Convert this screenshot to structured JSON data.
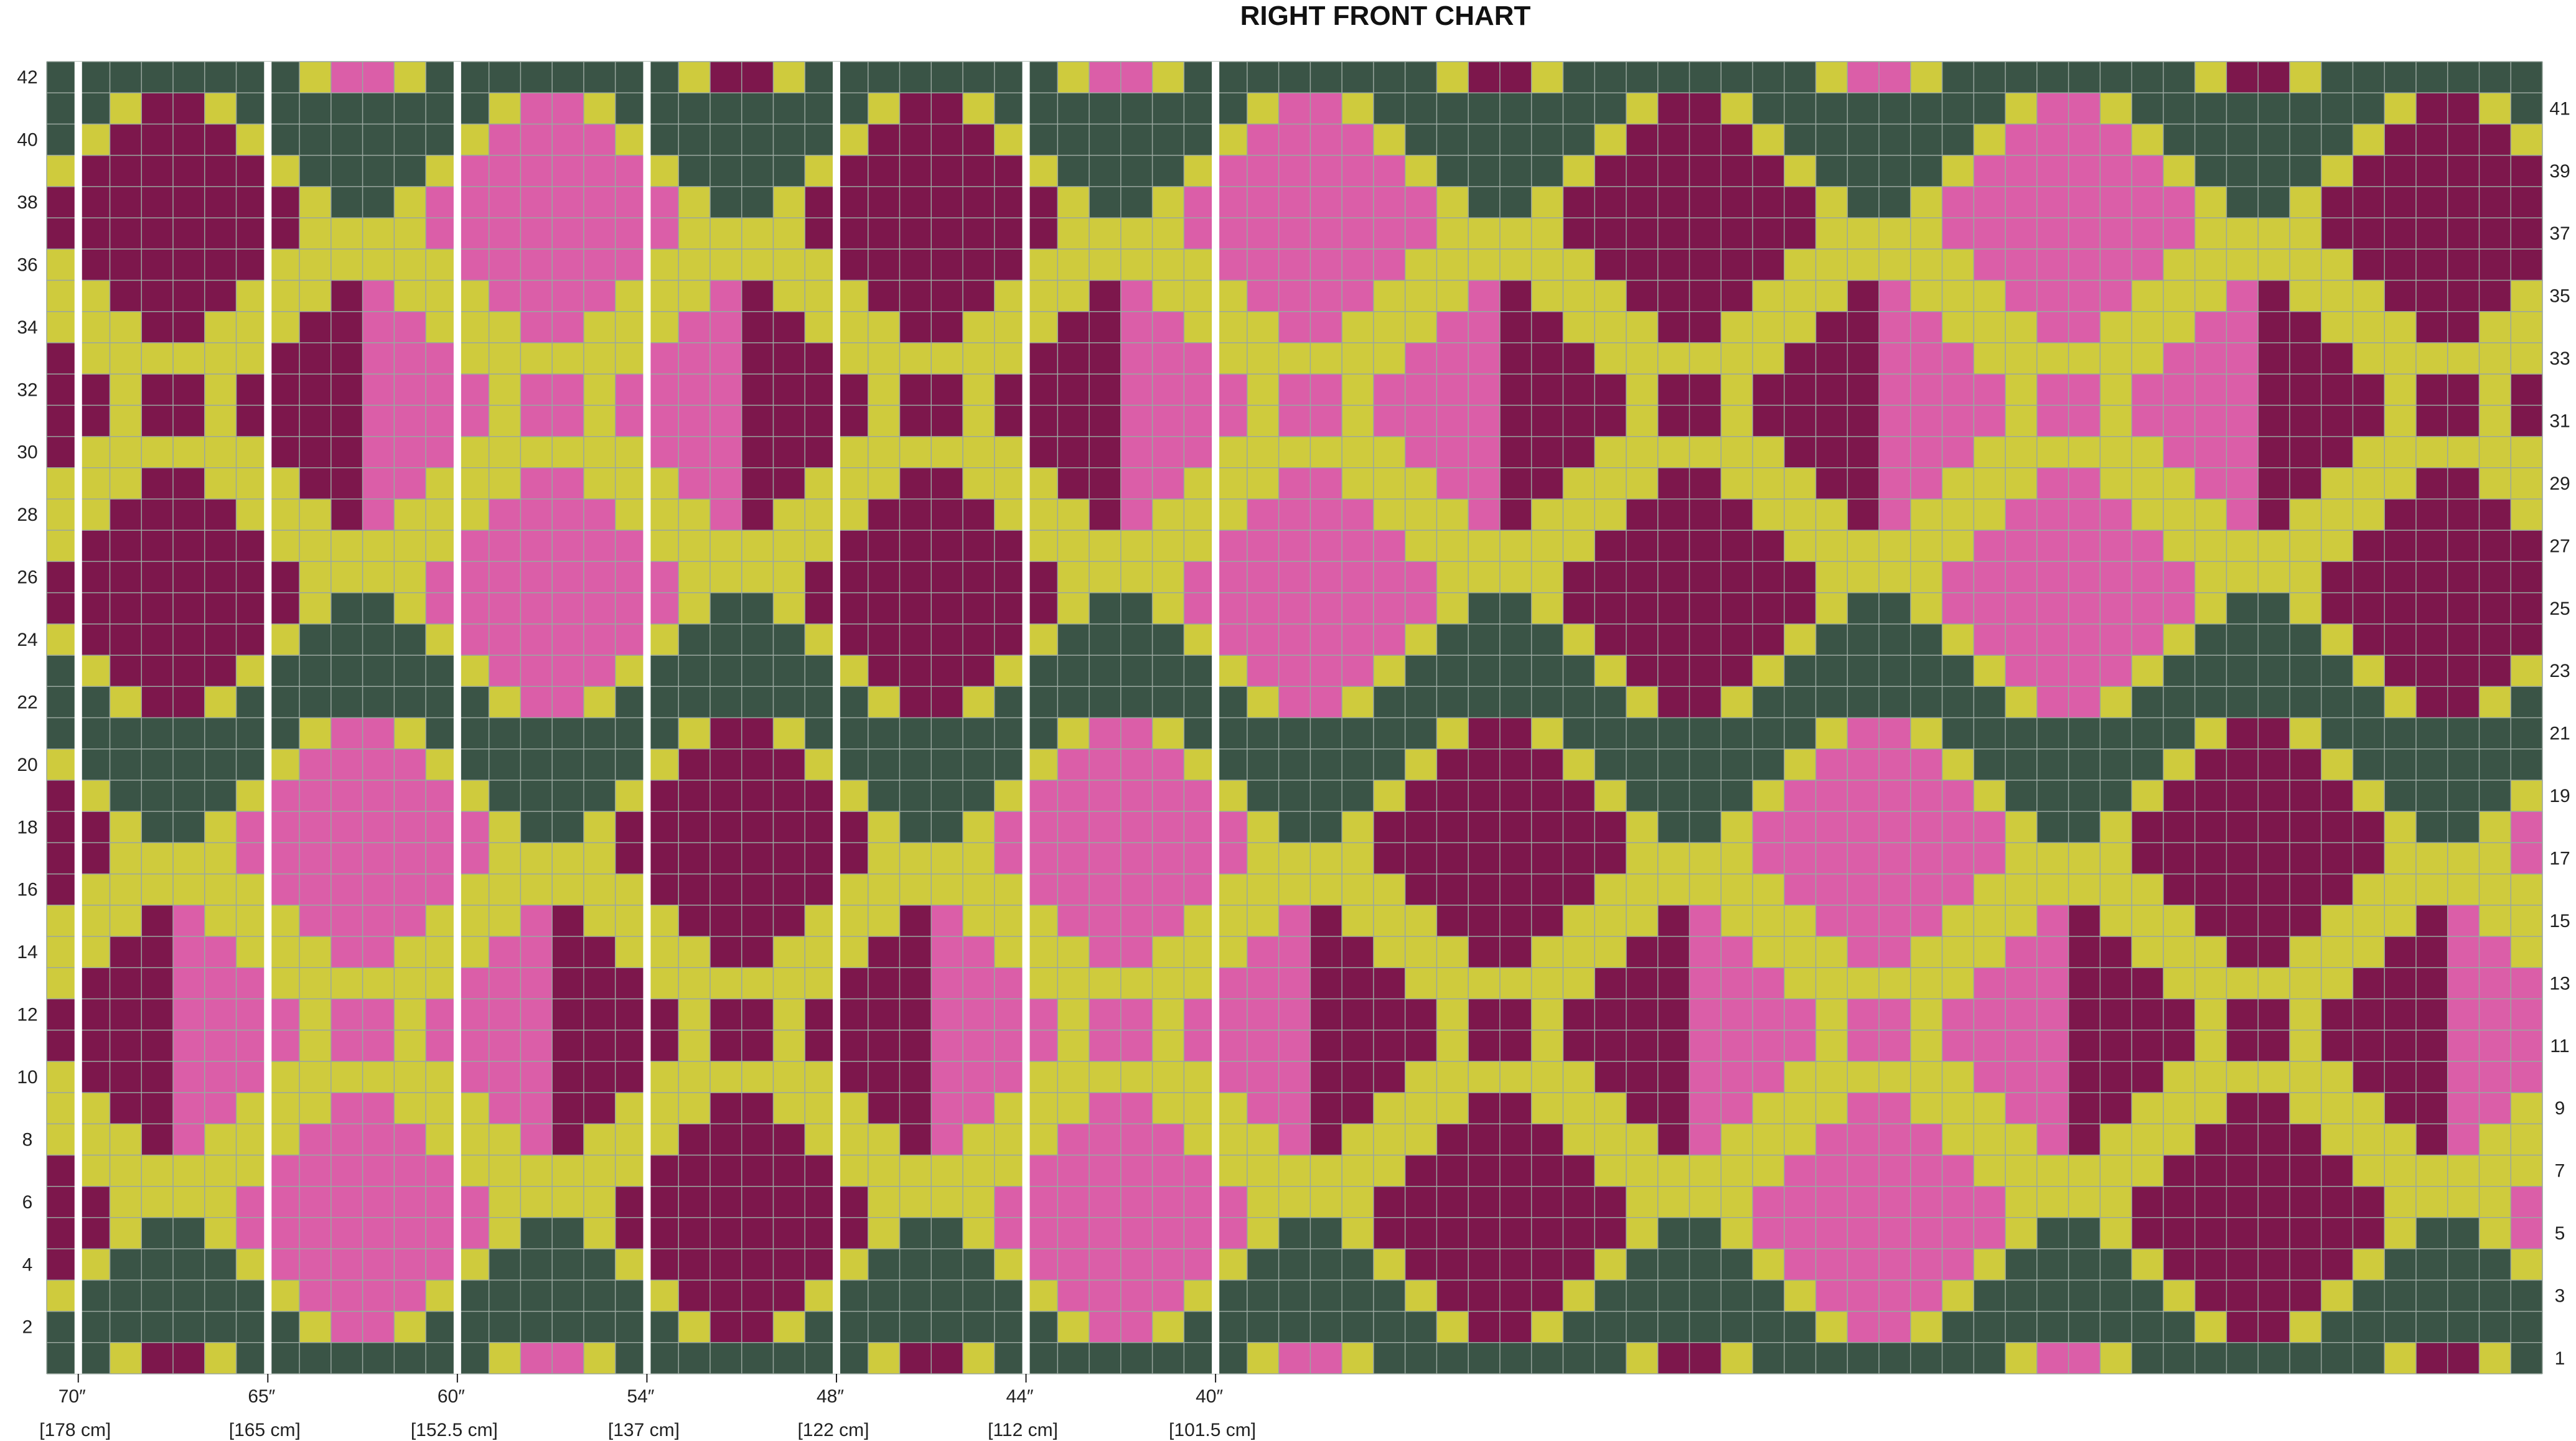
{
  "title": "RIGHT FRONT CHART",
  "rows": 42,
  "cols": 79,
  "colors": {
    "background": "#3a5446",
    "pink": "#db5ea8",
    "plum": "#7d174c",
    "lime": "#cfcb3d",
    "gridline": "#9aa79f",
    "divider": "#ffffff"
  },
  "left_row_labels": [
    "42",
    "40",
    "38",
    "36",
    "34",
    "32",
    "30",
    "28",
    "26",
    "24",
    "22",
    "20",
    "18",
    "16",
    "14",
    "12",
    "10",
    "8",
    "6",
    "4",
    "2"
  ],
  "right_row_labels": [
    "41",
    "39",
    "37",
    "35",
    "33",
    "31",
    "29",
    "27",
    "25",
    "23",
    "21",
    "19",
    "17",
    "15",
    "13",
    "11",
    "9",
    "7",
    "5",
    "3",
    "1"
  ],
  "size_markers": [
    {
      "inches": "70″",
      "cm": "[178 cm]"
    },
    {
      "inches": "65″",
      "cm": "[165 cm]"
    },
    {
      "inches": "60″",
      "cm": "[152.5 cm]"
    },
    {
      "inches": "54″",
      "cm": "[137 cm]"
    },
    {
      "inches": "48″",
      "cm": "[122 cm]"
    },
    {
      "inches": "44″",
      "cm": "[112 cm]"
    },
    {
      "inches": "40″",
      "cm": "[101.5 cm]"
    }
  ]
}
